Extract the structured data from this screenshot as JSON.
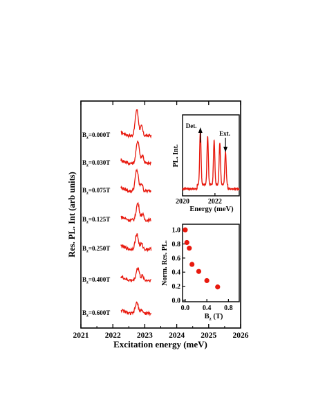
{
  "chart_data": [
    {
      "type": "line",
      "role": "main",
      "xlabel": "Excitation energy (meV)",
      "ylabel": "Res. PL. Int (arb units)",
      "xlim": [
        2021,
        2026
      ],
      "xticks": [
        "2021",
        "2022",
        "2023",
        "2024",
        "2025",
        "2026"
      ],
      "series_color": "#e8190e",
      "series": [
        {
          "name": "B_z=0.000T",
          "label_main": "B",
          "label_sub": "z",
          "label_rest": "=0.000T",
          "peak": 1.0
        },
        {
          "name": "B_z=0.030T",
          "label_main": "B",
          "label_sub": "z",
          "label_rest": "=0.030T",
          "peak": 0.82
        },
        {
          "name": "B_z=0.075T",
          "label_main": "B",
          "label_sub": "z",
          "label_rest": "=0.075T",
          "peak": 0.74
        },
        {
          "name": "B_z=0.125T",
          "label_main": "B",
          "label_sub": "z",
          "label_rest": "=0.125T",
          "peak": 0.51
        },
        {
          "name": "B_z=0.250T",
          "label_main": "B",
          "label_sub": "z",
          "label_rest": "=0.250T",
          "peak": 0.41
        },
        {
          "name": "B_z=0.400T",
          "label_main": "B",
          "label_sub": "z",
          "label_rest": "=0.400T",
          "peak": 0.28
        },
        {
          "name": "B_z=0.600T",
          "label_main": "B",
          "label_sub": "z",
          "label_rest": "=0.600T",
          "peak": 0.19
        }
      ]
    },
    {
      "type": "line",
      "role": "inset-top",
      "xlabel": "Energy (meV)",
      "ylabel": "PL. Int.",
      "xlim": [
        2020,
        2023.5
      ],
      "xticks": [
        "2020",
        "2022"
      ],
      "peaks_meV": [
        2021.1,
        2021.55,
        2021.95,
        2022.3,
        2022.65
      ],
      "annotations": [
        {
          "text": "Det.",
          "arrow": "up",
          "x": 2021.1
        },
        {
          "text": "Ext.",
          "arrow": "down",
          "x": 2022.65
        }
      ]
    },
    {
      "type": "scatter",
      "role": "inset-bottom",
      "xlabel_main": "B",
      "xlabel_sub": "z",
      "xlabel_rest": " (T)",
      "ylabel": "Norm. Res. PL.",
      "xlim": [
        -0.05,
        1.0
      ],
      "ylim": [
        -0.02,
        1.08
      ],
      "xticks": [
        "0.0",
        "0.4",
        "0.8"
      ],
      "yticks": [
        "0.0",
        "0.2",
        "0.4",
        "0.6",
        "0.8",
        "1.0"
      ],
      "point_color": "#e8190e",
      "x": [
        0.0,
        0.03,
        0.075,
        0.125,
        0.25,
        0.4,
        0.6
      ],
      "y": [
        1.0,
        0.82,
        0.74,
        0.51,
        0.41,
        0.28,
        0.19
      ]
    }
  ]
}
